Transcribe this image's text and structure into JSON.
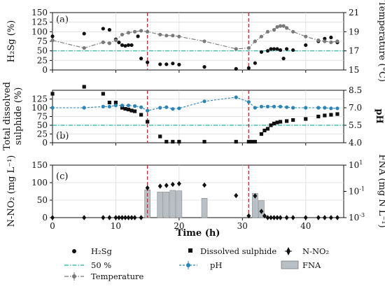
{
  "chart_data": [
    {
      "panel_label": "(a)",
      "type": "scatter+line",
      "ylabel_left": "H2Sg (%)",
      "ylabel_right": "Temperature (°C)",
      "ylim_left": [
        0,
        150
      ],
      "ylim_right": [
        15,
        21
      ],
      "yticks_left": [
        "0",
        "25",
        "50",
        "75",
        "100",
        "125",
        "150"
      ],
      "yticks_right": [
        "15",
        "17",
        "19",
        "21"
      ],
      "xlim": [
        0,
        46
      ],
      "grid": true,
      "series": [
        {
          "name": "H2Sg",
          "marker": "circle",
          "axis": "left",
          "points": [
            [
              0,
              88
            ],
            [
              5,
              95
            ],
            [
              8,
              108
            ],
            [
              9,
              105
            ],
            [
              10,
              80
            ],
            [
              10.5,
              72
            ],
            [
              11,
              65
            ],
            [
              11.5,
              63
            ],
            [
              12,
              65
            ],
            [
              12.5,
              65
            ],
            [
              13.5,
              88
            ],
            [
              14,
              30
            ],
            [
              15,
              20
            ],
            [
              17,
              15
            ],
            [
              18,
              15
            ],
            [
              19,
              17
            ],
            [
              20,
              14
            ],
            [
              24,
              8
            ],
            [
              29,
              3
            ],
            [
              31,
              5
            ],
            [
              32,
              18
            ],
            [
              33,
              47
            ],
            [
              34,
              50
            ],
            [
              34.5,
              55
            ],
            [
              35,
              55
            ],
            [
              35.5,
              55
            ],
            [
              36,
              52
            ],
            [
              36.5,
              30
            ],
            [
              37,
              55
            ],
            [
              38,
              52
            ],
            [
              40,
              65
            ],
            [
              42,
              75
            ],
            [
              43,
              82
            ],
            [
              44,
              85
            ],
            [
              45,
              72
            ]
          ]
        },
        {
          "name": "Temperature",
          "marker": "circle-line",
          "axis": "right",
          "points": [
            [
              0,
              18.1
            ],
            [
              5,
              17.3
            ],
            [
              8,
              17.9
            ],
            [
              9,
              17.8
            ],
            [
              10,
              18.1
            ],
            [
              11,
              18.7
            ],
            [
              12,
              18.9
            ],
            [
              13,
              19.0
            ],
            [
              14,
              19.1
            ],
            [
              15,
              19.0
            ],
            [
              17,
              18.7
            ],
            [
              18,
              18.6
            ],
            [
              19,
              18.6
            ],
            [
              20,
              18.5
            ],
            [
              24,
              18.0
            ],
            [
              29,
              17.2
            ],
            [
              31,
              17.3
            ],
            [
              32,
              18.0
            ],
            [
              33,
              18.5
            ],
            [
              34,
              19.0
            ],
            [
              35,
              19.2
            ],
            [
              35.5,
              19.5
            ],
            [
              36,
              19.6
            ],
            [
              36.5,
              19.6
            ],
            [
              37,
              19.4
            ],
            [
              38,
              19.0
            ],
            [
              40,
              18.5
            ],
            [
              42,
              18.1
            ],
            [
              43,
              18.0
            ],
            [
              44,
              17.9
            ],
            [
              45,
              18.0
            ]
          ]
        }
      ],
      "reference_line": {
        "name": "50 %",
        "value": 50,
        "axis": "left"
      },
      "event_lines_x": [
        15,
        31
      ]
    },
    {
      "panel_label": "(b)",
      "type": "scatter+line",
      "ylabel_left": "Total dissolved sulphide (%)",
      "ylabel_right": "pH",
      "ylim_left": [
        0,
        150
      ],
      "ylim_right": [
        4.0,
        8.5
      ],
      "yticks_left": [
        "0",
        "25",
        "50",
        "75",
        "100",
        "125"
      ],
      "yticks_right": [
        "4.0",
        "5.5",
        "7.0",
        "8.5"
      ],
      "xlim": [
        0,
        46
      ],
      "grid": true,
      "series": [
        {
          "name": "Dissolved sulphide",
          "marker": "square",
          "axis": "left",
          "points": [
            [
              0,
              140
            ],
            [
              5,
              160
            ],
            [
              8,
              140
            ],
            [
              9,
              115
            ],
            [
              10,
              115
            ],
            [
              11,
              100
            ],
            [
              11.5,
              97
            ],
            [
              12,
              95
            ],
            [
              12.5,
              92
            ],
            [
              13,
              90
            ],
            [
              14,
              80
            ],
            [
              15,
              60
            ],
            [
              17,
              18
            ],
            [
              18,
              3
            ],
            [
              19,
              3
            ],
            [
              20,
              3
            ],
            [
              24,
              3
            ],
            [
              29,
              3
            ],
            [
              31,
              3
            ],
            [
              31.5,
              3
            ],
            [
              32,
              3
            ],
            [
              33,
              25
            ],
            [
              33.5,
              35
            ],
            [
              34,
              40
            ],
            [
              34.5,
              50
            ],
            [
              35,
              55
            ],
            [
              35.5,
              58
            ],
            [
              36,
              60
            ],
            [
              37,
              62
            ],
            [
              38,
              65
            ],
            [
              40,
              68
            ],
            [
              42,
              75
            ],
            [
              43,
              78
            ],
            [
              44,
              80
            ],
            [
              45,
              82
            ]
          ]
        },
        {
          "name": "pH",
          "marker": "circle-line-errorbar",
          "axis": "right",
          "points": [
            [
              0,
              7.0
            ],
            [
              5,
              7.0
            ],
            [
              8,
              7.1
            ],
            [
              9,
              7.1
            ],
            [
              10,
              7.2
            ],
            [
              11,
              7.2
            ],
            [
              12,
              7.2
            ],
            [
              13,
              7.15
            ],
            [
              14,
              7.05
            ],
            [
              15,
              6.75
            ],
            [
              17,
              7.0
            ],
            [
              18,
              7.05
            ],
            [
              19,
              6.9
            ],
            [
              20,
              6.95
            ],
            [
              24,
              7.55
            ],
            [
              29,
              7.9
            ],
            [
              31,
              7.5
            ],
            [
              32,
              7.0
            ],
            [
              33,
              7.1
            ],
            [
              34,
              7.1
            ],
            [
              35,
              7.1
            ],
            [
              36,
              7.1
            ],
            [
              37,
              7.05
            ],
            [
              38,
              7.0
            ],
            [
              40,
              7.0
            ],
            [
              42,
              7.0
            ],
            [
              43,
              7.0
            ],
            [
              44,
              6.95
            ],
            [
              45,
              6.95
            ]
          ]
        }
      ],
      "reference_line": {
        "name": "50 %",
        "value": 50,
        "axis": "left"
      },
      "event_lines_x": [
        15,
        31
      ]
    },
    {
      "panel_label": "(c)",
      "type": "scatter+bar",
      "ylabel_left": "N-NO2 (mg L-1)",
      "ylabel_right": "FNA (mg N L-1)",
      "ylim_left": [
        0,
        150
      ],
      "ylim_right_log": [
        0.001,
        10
      ],
      "yticks_left": [
        "0",
        "50",
        "100",
        "150"
      ],
      "xlabel": "Time (h)",
      "xticks": [
        "0",
        "10",
        "20",
        "30",
        "40"
      ],
      "xlim": [
        0,
        46
      ],
      "grid": true,
      "series": [
        {
          "name": "N-NO2",
          "marker": "diamond",
          "axis": "left",
          "points": [
            [
              0,
              0
            ],
            [
              5,
              0
            ],
            [
              8,
              0
            ],
            [
              9,
              0
            ],
            [
              10,
              0
            ],
            [
              10.5,
              0
            ],
            [
              11,
              0
            ],
            [
              11.5,
              0
            ],
            [
              12,
              0
            ],
            [
              12.5,
              0
            ],
            [
              13,
              0
            ],
            [
              14,
              0
            ],
            [
              15,
              85
            ],
            [
              17,
              90
            ],
            [
              18,
              92
            ],
            [
              19,
              95
            ],
            [
              20,
              97
            ],
            [
              24,
              93
            ],
            [
              29,
              63
            ],
            [
              31,
              5
            ],
            [
              32,
              62
            ],
            [
              33,
              18
            ],
            [
              33.5,
              5
            ],
            [
              34,
              0
            ],
            [
              34.5,
              0
            ],
            [
              35,
              0
            ],
            [
              35.5,
              0
            ],
            [
              36,
              0
            ],
            [
              37,
              0
            ],
            [
              38,
              0
            ],
            [
              40,
              0
            ],
            [
              42,
              0
            ],
            [
              43,
              0
            ],
            [
              44,
              0
            ],
            [
              45,
              0
            ]
          ]
        },
        {
          "name": "FNA",
          "marker": "bar",
          "axis": "right",
          "bars": [
            [
              15,
              0.13
            ],
            [
              17,
              0.09
            ],
            [
              18,
              0.09
            ],
            [
              19,
              0.12
            ],
            [
              20,
              0.11
            ],
            [
              24,
              0.03
            ],
            [
              32,
              0.07
            ],
            [
              33,
              0.02
            ]
          ]
        }
      ],
      "event_lines_x": [
        15,
        31
      ]
    }
  ],
  "legend": {
    "h2sg": "H₂Sg",
    "dissolved": "Dissolved sulphide",
    "nno2": "N-NO₂",
    "fifty": "50 %",
    "ph": "pH",
    "fna": "FNA",
    "temperature": "Temperature"
  },
  "labels": {
    "panel_a": "(a)",
    "panel_b": "(b)",
    "panel_c": "(c)",
    "a_left": "H₂Sg (%)",
    "a_right": "Temperature (°C)",
    "b_left_line1": "Total dissolved",
    "b_left_line2": "sulphide (%)",
    "b_right": "pH",
    "c_left": "N-NO₂ (mg L⁻¹)",
    "c_right": "FNA (mg N L⁻¹)",
    "xlabel": "Time (h)"
  },
  "colors": {
    "black": "#111111",
    "temperature": "#7a7a7a",
    "ph": "#2a86b8",
    "fifty": "#22b39a",
    "event": "#e02020",
    "fna_bar": "#b8c0c6",
    "grid": "#dcdcdc"
  }
}
